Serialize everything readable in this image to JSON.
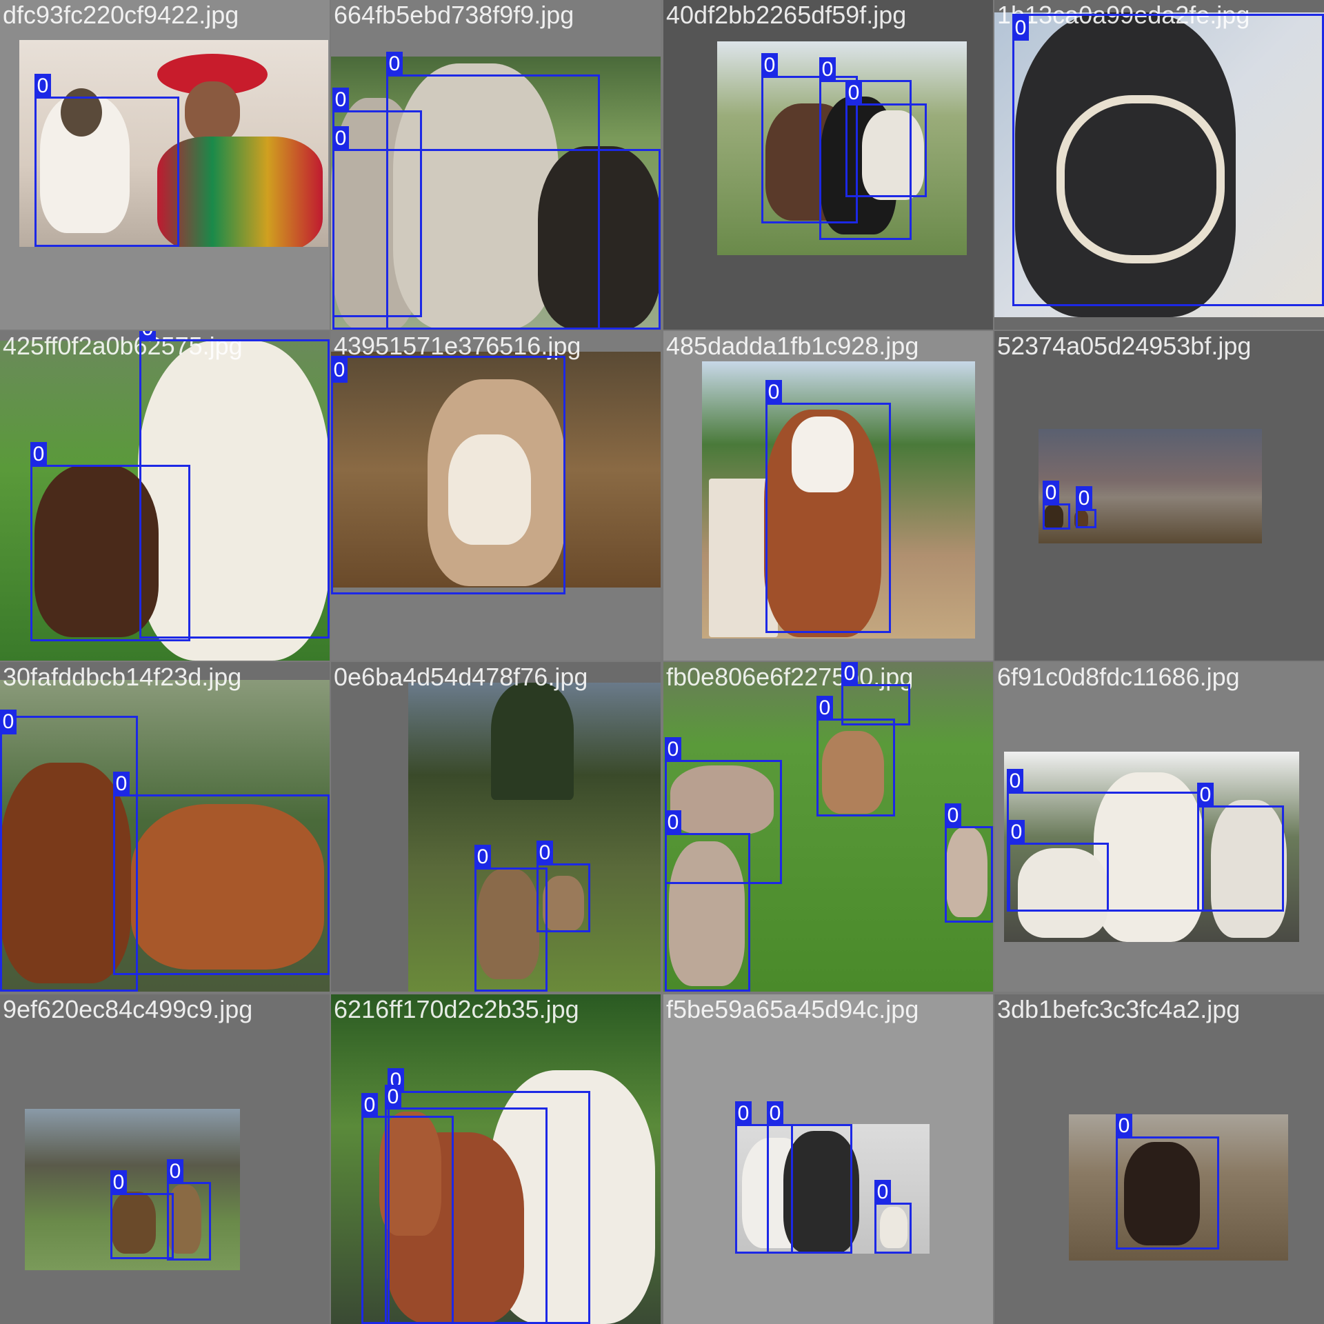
{
  "colors": {
    "box": "#1c28e6",
    "label_text": "#ffffff"
  },
  "tiles": [
    {
      "filename": "dfc93fc220cf9422.jpg",
      "bg": "#8c8c8c",
      "boxes": [
        {
          "label": "0"
        }
      ],
      "scene": "llama beside Andean woman in red hat"
    },
    {
      "filename": "664fb5ebd738f9f9.jpg",
      "bg": "#7d7d7d",
      "boxes": [
        {
          "label": "0"
        },
        {
          "label": "0"
        },
        {
          "label": "0"
        }
      ],
      "scene": "close-up grey alpacas"
    },
    {
      "filename": "40df2bb2265df59f.jpg",
      "bg": "#555555",
      "boxes": [
        {
          "label": "0"
        },
        {
          "label": "0"
        },
        {
          "label": "0"
        },
        {
          "label": "0"
        }
      ],
      "scene": "alpacas in pen at fair"
    },
    {
      "filename": "1b13ca0a99eda2fe.jpg",
      "bg": "#6a6a6a",
      "boxes": [
        {
          "label": "0"
        }
      ],
      "scene": "dark llama with white halter"
    },
    {
      "filename": "425ff0f2a0b62575.jpg",
      "bg": "#777777",
      "boxes": [
        {
          "label": "0"
        },
        {
          "label": "0"
        }
      ],
      "scene": "white llama and brown llama in field"
    },
    {
      "filename": "43951571e376516.jpg",
      "bg": "#7c7c7c",
      "boxes": [
        {
          "label": "0"
        }
      ],
      "scene": "brown llama face close-up"
    },
    {
      "filename": "485dadda1fb1c928.jpg",
      "bg": "#8e8e8e",
      "boxes": [
        {
          "label": "0"
        }
      ],
      "scene": "brown and white llama near fence"
    },
    {
      "filename": "52374a05d24953bf.jpg",
      "bg": "#5f5f5f",
      "boxes": [
        {
          "label": "0"
        },
        {
          "label": "0"
        }
      ],
      "scene": "two llamas in desert landscape"
    },
    {
      "filename": "30fafddbcb14f23d.jpg",
      "bg": "#6e6e6e",
      "boxes": [
        {
          "label": "0"
        },
        {
          "label": "0"
        }
      ],
      "scene": "two brown alpacas by fence"
    },
    {
      "filename": "0e6ba4d54d478f76.jpg",
      "bg": "#6b6b6b",
      "boxes": [
        {
          "label": "0"
        },
        {
          "label": "0"
        }
      ],
      "scene": "llamas at Machu Picchu"
    },
    {
      "filename": "fb0e806e6f2275b0.jpg",
      "bg": "#8a8a8a",
      "boxes": [
        {
          "label": "0"
        },
        {
          "label": "0"
        },
        {
          "label": "0"
        },
        {
          "label": "0"
        },
        {
          "label": "0"
        }
      ],
      "scene": "alpacas on grass"
    },
    {
      "filename": "6f91c0d8fdc11686.jpg",
      "bg": "#808080",
      "boxes": [
        {
          "label": "0"
        },
        {
          "label": "0"
        },
        {
          "label": "0"
        }
      ],
      "scene": "white llamas behind fence"
    },
    {
      "filename": "9ef620ec84c499c9.jpg",
      "bg": "#707070",
      "boxes": [
        {
          "label": "0"
        },
        {
          "label": "0"
        }
      ],
      "scene": "llamas grazing at ruins"
    },
    {
      "filename": "6216ff170d2c2b35.jpg",
      "bg": "#777777",
      "boxes": [
        {
          "label": "0"
        },
        {
          "label": "0"
        },
        {
          "label": "0"
        }
      ],
      "scene": "brown and white alpacas"
    },
    {
      "filename": "f5be59a65a45d94c.jpg",
      "bg": "#9a9a9a",
      "boxes": [
        {
          "label": "0"
        },
        {
          "label": "0"
        },
        {
          "label": "0"
        }
      ],
      "scene": "black and white alpacas"
    },
    {
      "filename": "3db1befc3c3fc4a2.jpg",
      "bg": "#6d6d6d",
      "boxes": [
        {
          "label": "0"
        }
      ],
      "scene": "dark llama on dirt"
    }
  ]
}
